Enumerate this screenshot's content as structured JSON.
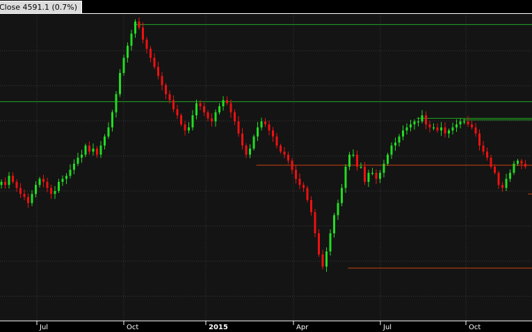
{
  "title": {
    "close_label": "Close",
    "close_value": "4591.1",
    "change": "(0.7%)"
  },
  "colors": {
    "background": "#000000",
    "plot_background": "#141414",
    "grid": "#3a3a3a",
    "up_candle": "#22dd22",
    "down_candle": "#ee1111",
    "resistance_line": "#22aa22",
    "support_line": "#cc4411"
  },
  "chart_data": {
    "type": "candlestick",
    "title": "Close 4591.1 (0.7%)",
    "x_tick_labels": [
      "Jul",
      "Oct",
      "2015",
      "Apr",
      "Jul",
      "Oct"
    ],
    "bold_tick_labels": [
      "2015"
    ],
    "grid": true,
    "series": [
      {
        "name": "",
        "values": [
          0.47,
          0.46,
          0.49,
          0.47,
          0.45,
          0.43,
          0.42,
          0.4,
          0.43,
          0.46,
          0.48,
          0.47,
          0.45,
          0.43,
          0.44,
          0.47,
          0.48,
          0.49,
          0.51,
          0.53,
          0.55,
          0.56,
          0.59,
          0.57,
          0.58,
          0.56,
          0.59,
          0.62,
          0.65,
          0.7,
          0.76,
          0.83,
          0.88,
          0.92,
          0.96,
          1.0,
          0.98,
          0.94,
          0.91,
          0.88,
          0.85,
          0.82,
          0.79,
          0.76,
          0.74,
          0.71,
          0.69,
          0.66,
          0.64,
          0.65,
          0.69,
          0.73,
          0.72,
          0.7,
          0.68,
          0.67,
          0.7,
          0.72,
          0.74,
          0.73,
          0.7,
          0.67,
          0.63,
          0.59,
          0.56,
          0.58,
          0.62,
          0.65,
          0.67,
          0.66,
          0.64,
          0.62,
          0.59,
          0.57,
          0.56,
          0.54,
          0.51,
          0.48,
          0.46,
          0.45,
          0.41,
          0.37,
          0.3,
          0.23,
          0.19,
          0.24,
          0.3,
          0.36,
          0.4,
          0.45,
          0.52,
          0.56,
          0.56,
          0.52,
          0.52,
          0.47,
          0.5,
          0.5,
          0.48,
          0.5,
          0.53,
          0.56,
          0.59,
          0.6,
          0.62,
          0.64,
          0.65,
          0.66,
          0.67,
          0.67,
          0.69,
          0.66,
          0.65,
          0.65,
          0.64,
          0.65,
          0.63,
          0.64,
          0.65,
          0.66,
          0.67,
          0.67,
          0.66,
          0.65,
          0.63,
          0.59,
          0.57,
          0.55,
          0.52,
          0.5,
          0.46,
          0.45,
          0.48,
          0.5,
          0.53,
          0.54,
          0.53,
          0.52
        ]
      }
    ],
    "reference_lines": [
      {
        "kind": "resistance",
        "value": 0.99,
        "from_index": 35
      },
      {
        "kind": "resistance",
        "value": 0.735,
        "from_index": 0
      },
      {
        "kind": "resistance",
        "value": 0.68,
        "from_index": 109
      },
      {
        "kind": "resistance",
        "value": 0.675,
        "from_index": 121
      },
      {
        "kind": "support",
        "value": 0.525,
        "from_index": 67
      },
      {
        "kind": "support",
        "value": 0.43,
        "from_index": 138
      },
      {
        "kind": "support",
        "value": 0.185,
        "from_index": 91
      }
    ]
  }
}
